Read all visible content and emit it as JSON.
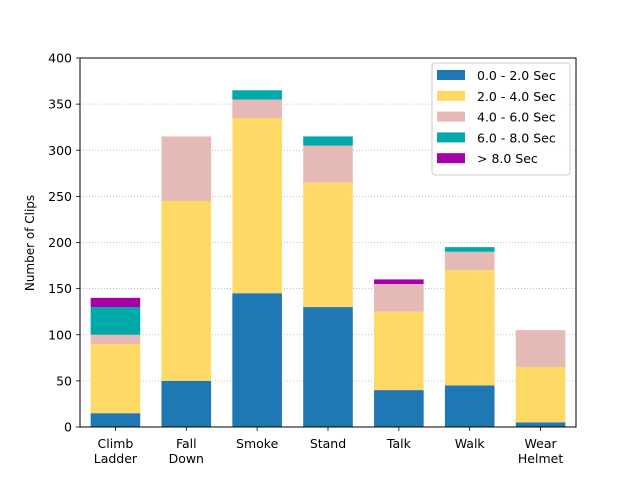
{
  "chart_data": {
    "type": "bar",
    "stacked": true,
    "title": "",
    "xlabel": "",
    "ylabel": "Number of Clips",
    "ylim": [
      0,
      400
    ],
    "yticks": [
      0,
      50,
      100,
      150,
      200,
      250,
      300,
      350,
      400
    ],
    "grid": "y-dotted",
    "legend_position": "top-right",
    "categories": [
      [
        "Climb",
        "Ladder"
      ],
      [
        "Fall",
        "Down"
      ],
      [
        "Smoke"
      ],
      [
        "Stand"
      ],
      [
        "Talk"
      ],
      [
        "Walk"
      ],
      [
        "Wear",
        "Helmet"
      ]
    ],
    "series": [
      {
        "name": "0.0 - 2.0 Sec",
        "color": "#1f77b4",
        "values": [
          15,
          50,
          145,
          130,
          40,
          45,
          5
        ]
      },
      {
        "name": "2.0 - 4.0 Sec",
        "color": "#ffd966",
        "values": [
          75,
          195,
          190,
          135,
          85,
          125,
          60
        ]
      },
      {
        "name": "4.0 - 6.0 Sec",
        "color": "#e5b9b5",
        "values": [
          10,
          70,
          20,
          40,
          30,
          20,
          40
        ]
      },
      {
        "name": "6.0 - 8.0 Sec",
        "color": "#00a9a9",
        "values": [
          30,
          0,
          10,
          10,
          0,
          5,
          0
        ]
      },
      {
        "name": "> 8.0 Sec",
        "color": "#a600a6",
        "values": [
          10,
          0,
          0,
          0,
          5,
          0,
          0
        ]
      }
    ]
  }
}
